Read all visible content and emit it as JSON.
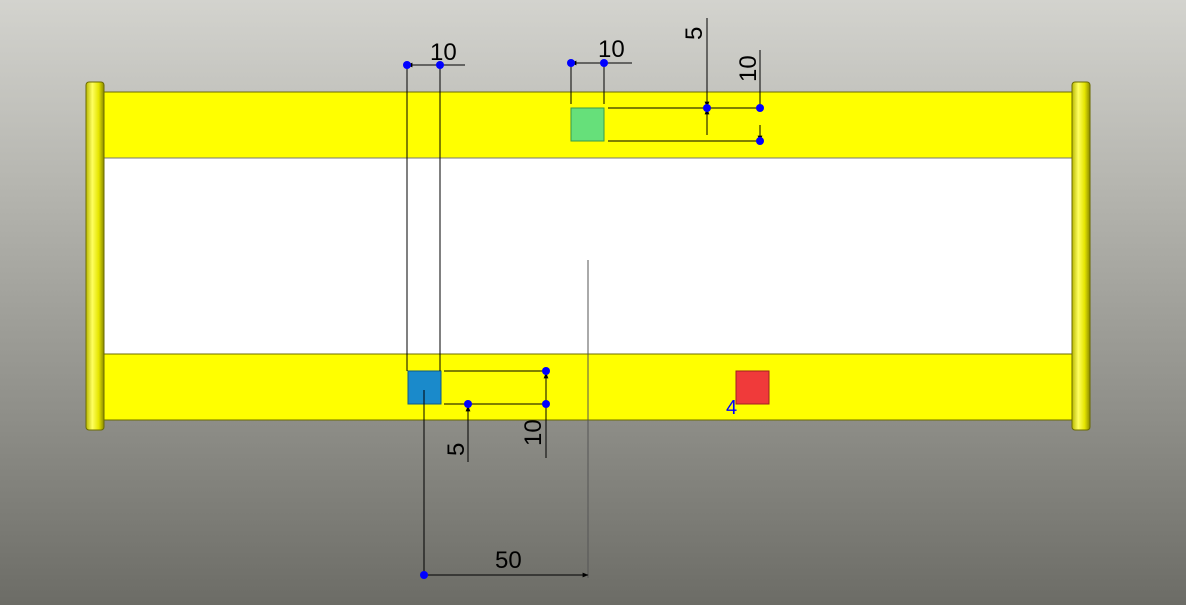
{
  "colors": {
    "part_face": "#ffff00",
    "part_edge": "#555555",
    "slot_face": "#ffffff",
    "sketch_green": "#66e07a",
    "sketch_blue": "#1a8acb",
    "sketch_red": "#f03a3a",
    "dimension_line": "#000000",
    "dimension_point": "#0000ff"
  },
  "dimensions": {
    "top_left_width": "10",
    "top_right_width": "10",
    "top_offset": "5",
    "top_height": "10",
    "bottom_width": "10",
    "bottom_offset": "5",
    "bottom_height": "10",
    "center_distance": "50"
  },
  "sketch": {
    "red_square_label": "4"
  }
}
